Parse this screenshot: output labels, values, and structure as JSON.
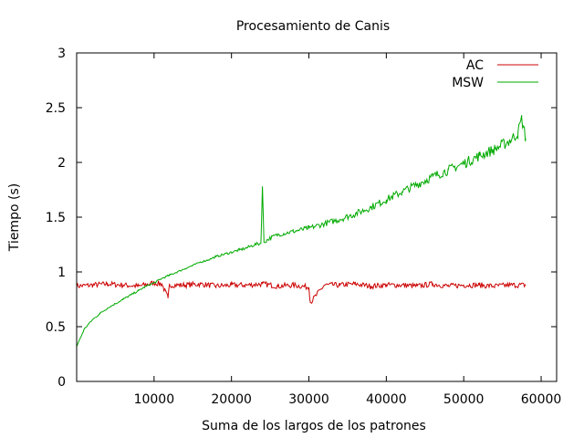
{
  "chart_data": {
    "type": "line",
    "title": "Procesamiento de Canis",
    "xlabel": "Suma de los largos de los patrones",
    "ylabel": "Tiempo (s)",
    "xlim": [
      0,
      62000
    ],
    "ylim": [
      0,
      3
    ],
    "x_ticks": [
      10000,
      20000,
      30000,
      40000,
      50000,
      60000
    ],
    "x_tick_labels": [
      "10000",
      "20000",
      "30000",
      "40000",
      "50000",
      "60000"
    ],
    "y_ticks": [
      0,
      0.5,
      1,
      1.5,
      2,
      2.5,
      3
    ],
    "y_tick_labels": [
      "0",
      "0.5",
      "1",
      "1.5",
      "2",
      "2.5",
      "3"
    ],
    "grid": false,
    "legend_position": "top-right",
    "series": [
      {
        "name": "AC",
        "color": "#cc0000",
        "x": [
          0,
          2000,
          4000,
          6000,
          8000,
          10000,
          11000,
          11800,
          12000,
          14000,
          16000,
          18000,
          20000,
          22000,
          24000,
          26000,
          28000,
          30000,
          30200,
          32000,
          34000,
          36000,
          38000,
          40000,
          42000,
          44000,
          46000,
          48000,
          50000,
          52000,
          54000,
          56000,
          58000
        ],
        "y": [
          0.87,
          0.88,
          0.89,
          0.88,
          0.87,
          0.9,
          0.89,
          0.76,
          0.88,
          0.88,
          0.89,
          0.87,
          0.88,
          0.88,
          0.89,
          0.87,
          0.88,
          0.86,
          0.72,
          0.88,
          0.88,
          0.89,
          0.87,
          0.88,
          0.88,
          0.87,
          0.89,
          0.87,
          0.88,
          0.88,
          0.87,
          0.88,
          0.88
        ]
      },
      {
        "name": "MSW",
        "color": "#00aa00",
        "x": [
          0,
          1000,
          2000,
          3000,
          4000,
          5000,
          6000,
          7000,
          8000,
          9000,
          10000,
          11000,
          12000,
          13000,
          14000,
          15000,
          16000,
          17000,
          18000,
          19000,
          20000,
          21000,
          22000,
          23000,
          23800,
          24000,
          24200,
          25000,
          26000,
          28000,
          30000,
          32000,
          34000,
          36000,
          38000,
          40000,
          42000,
          44000,
          46000,
          48000,
          50000,
          52000,
          54000,
          56000,
          57000,
          57500,
          58000
        ],
        "y": [
          0.32,
          0.48,
          0.56,
          0.62,
          0.67,
          0.71,
          0.75,
          0.79,
          0.83,
          0.87,
          0.9,
          0.94,
          0.97,
          1.0,
          1.03,
          1.06,
          1.09,
          1.11,
          1.14,
          1.16,
          1.18,
          1.2,
          1.22,
          1.25,
          1.26,
          1.78,
          1.27,
          1.31,
          1.34,
          1.37,
          1.4,
          1.44,
          1.48,
          1.53,
          1.59,
          1.66,
          1.73,
          1.8,
          1.87,
          1.93,
          1.99,
          2.06,
          2.12,
          2.2,
          2.27,
          2.4,
          2.22
        ]
      }
    ]
  }
}
